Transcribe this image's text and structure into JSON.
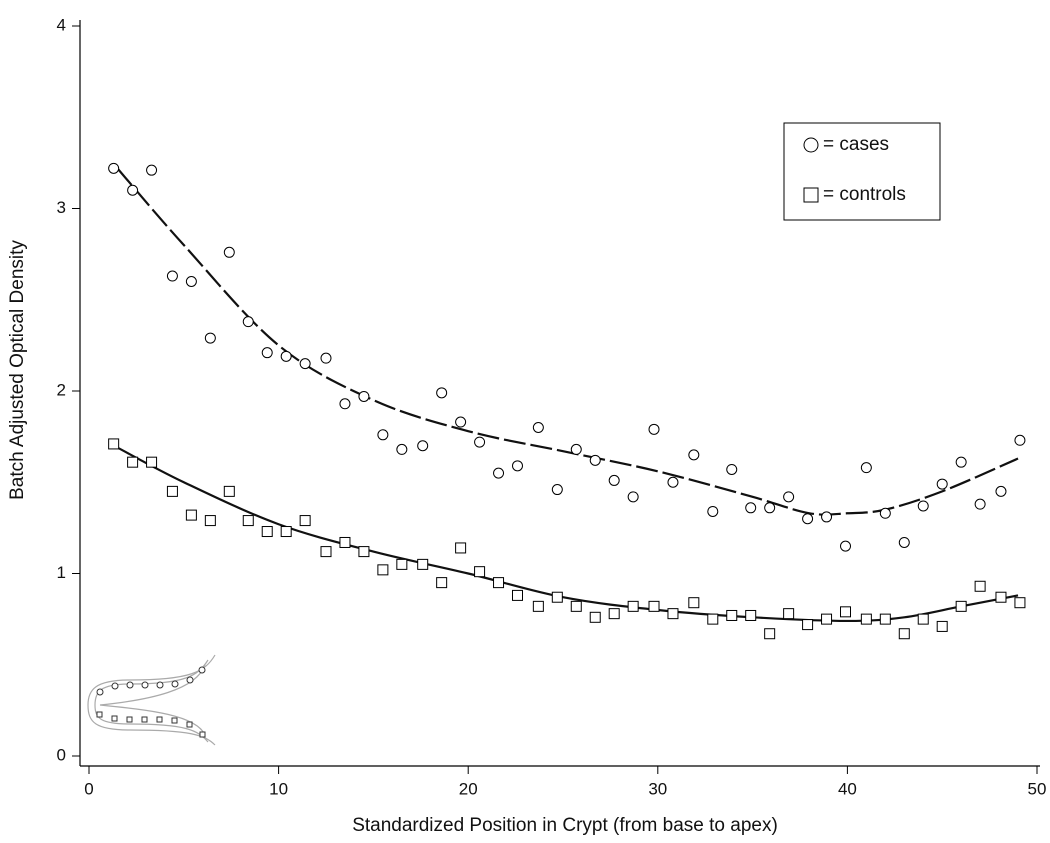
{
  "chart_data": {
    "type": "scatter",
    "xlabel": "Standardized Position in Crypt (from base to apex)",
    "ylabel": "Batch Adjusted Optical Density",
    "xlim": [
      0,
      50
    ],
    "ylim": [
      0,
      4
    ],
    "xticks": [
      0,
      10,
      20,
      30,
      40,
      50
    ],
    "yticks": [
      0,
      1,
      2,
      3,
      4
    ],
    "x": [
      1.3,
      2.3,
      3.3,
      4.4,
      5.4,
      6.4,
      7.4,
      8.4,
      9.4,
      10.4,
      11.4,
      12.5,
      13.5,
      14.5,
      15.5,
      16.5,
      17.6,
      18.6,
      19.6,
      20.6,
      21.6,
      22.6,
      23.7,
      24.7,
      25.7,
      26.7,
      27.7,
      28.7,
      29.8,
      30.8,
      31.9,
      32.9,
      33.9,
      34.9,
      35.9,
      36.9,
      37.9,
      38.9,
      39.9,
      41.0,
      42.0,
      43.0,
      44.0,
      45.0,
      46.0,
      47.0,
      48.1,
      49.1
    ],
    "series": [
      {
        "name": "= cases",
        "marker": "circle",
        "color": "#000000",
        "values": [
          3.22,
          3.1,
          3.21,
          2.63,
          2.6,
          2.29,
          2.76,
          2.38,
          2.21,
          2.19,
          2.15,
          2.18,
          1.93,
          1.97,
          1.76,
          1.68,
          1.7,
          1.99,
          1.83,
          1.72,
          1.55,
          1.59,
          1.8,
          1.46,
          1.68,
          1.62,
          1.51,
          1.42,
          1.79,
          1.5,
          1.65,
          1.34,
          1.57,
          1.36,
          1.36,
          1.42,
          1.3,
          1.31,
          1.15,
          1.58,
          1.33,
          1.17,
          1.37,
          1.49,
          1.61,
          1.38,
          1.45,
          1.73
        ]
      },
      {
        "name": "= controls",
        "marker": "square",
        "color": "#000000",
        "values": [
          1.71,
          1.61,
          1.61,
          1.45,
          1.32,
          1.29,
          1.45,
          1.29,
          1.23,
          1.23,
          1.29,
          1.12,
          1.17,
          1.12,
          1.02,
          1.05,
          1.05,
          0.95,
          1.14,
          1.01,
          0.95,
          0.88,
          0.82,
          0.87,
          0.82,
          0.76,
          0.78,
          0.82,
          0.82,
          0.78,
          0.84,
          0.75,
          0.77,
          0.77,
          0.67,
          0.78,
          0.72,
          0.75,
          0.79,
          0.75,
          0.75,
          0.67,
          0.75,
          0.71,
          0.82,
          0.93,
          0.87,
          0.84
        ]
      }
    ],
    "fit_lines": [
      {
        "style": "dashed",
        "x": [
          1.5,
          5,
          10,
          15,
          20,
          25,
          30,
          35,
          38,
          40,
          42,
          45,
          49
        ],
        "values": [
          3.22,
          2.8,
          2.25,
          1.95,
          1.78,
          1.67,
          1.56,
          1.42,
          1.33,
          1.33,
          1.35,
          1.45,
          1.63
        ]
      },
      {
        "style": "solid",
        "x": [
          1.5,
          5,
          10,
          15,
          20,
          25,
          30,
          35,
          40,
          43,
          46,
          49
        ],
        "values": [
          1.69,
          1.5,
          1.27,
          1.12,
          1.0,
          0.87,
          0.8,
          0.76,
          0.74,
          0.76,
          0.82,
          0.88
        ]
      }
    ]
  }
}
